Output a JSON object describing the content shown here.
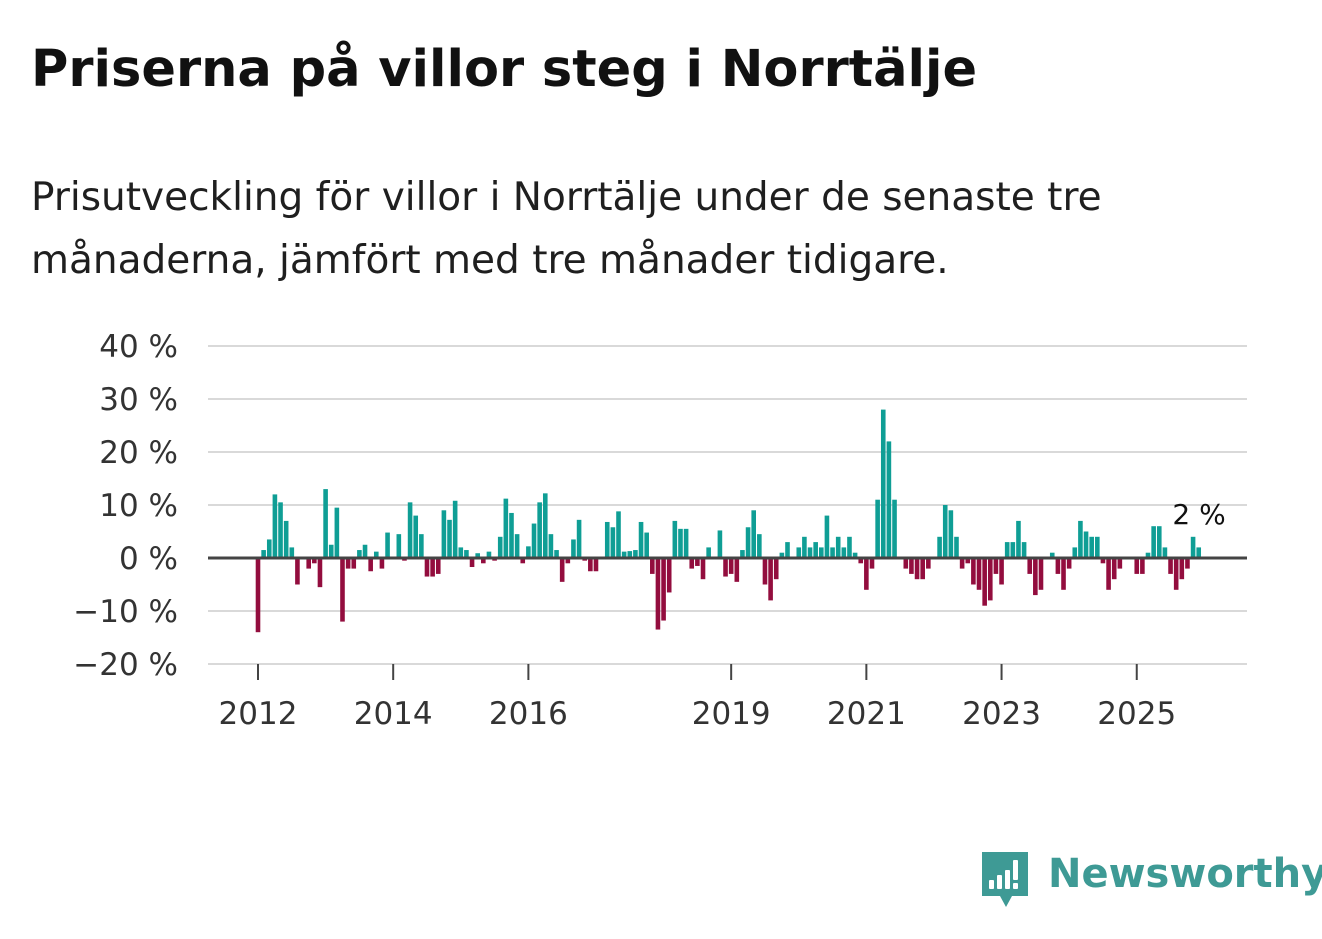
{
  "title": "Priserna på villor steg i Norrtälje",
  "subtitle": "Prisutveckling för villor i Norrtälje under de senaste tre månaderna, jämfört med tre månader tidigare.",
  "brand": "Newsworthy",
  "colors": {
    "positive": "#0f9e95",
    "negative": "#930d3e",
    "grid": "#d9d9d9",
    "zero": "#444444",
    "brand": "#3e9a95"
  },
  "chart_data": {
    "type": "bar",
    "title": "Priserna på villor steg i Norrtälje",
    "ylim": [
      -20,
      40
    ],
    "yticks": [
      40,
      30,
      20,
      10,
      0,
      -10,
      -20
    ],
    "ytick_labels": [
      "40 %",
      "30 %",
      "20 %",
      "10 %",
      "0 %",
      "−10 %",
      "−20 %"
    ],
    "xtick_labels": [
      "2012",
      "2014",
      "2016",
      "2019",
      "2021",
      "2023",
      "2025"
    ],
    "xtick_index": [
      0,
      24,
      48,
      84,
      108,
      132,
      156
    ],
    "last_label": "2 %",
    "start": "2012-01",
    "values": [
      -14,
      1.5,
      3.5,
      12,
      10.5,
      7,
      2,
      -5,
      0,
      -2,
      -1,
      -5.5,
      13,
      2.5,
      9.5,
      -12,
      -2,
      -2,
      1.5,
      2.5,
      -2.5,
      1.2,
      -2,
      4.8,
      0,
      4.5,
      -0.5,
      10.5,
      8,
      4.5,
      -3.5,
      -3.5,
      -3,
      9,
      7.2,
      10.8,
      2,
      1.5,
      -1.7,
      0.9,
      -1,
      1.2,
      -0.5,
      4,
      11.2,
      8.5,
      4.5,
      -1,
      2.2,
      6.5,
      10.5,
      12.2,
      4.5,
      1.5,
      -4.5,
      -1,
      3.5,
      7.2,
      -0.5,
      -2.5,
      -2.5,
      0,
      6.8,
      5.8,
      8.8,
      1.2,
      1.3,
      1.5,
      6.8,
      4.8,
      -3,
      -13.5,
      -11.8,
      -6.5,
      7,
      5.5,
      5.5,
      -2,
      -1.5,
      -4,
      2,
      0,
      5.2,
      -3.5,
      -3,
      -4.5,
      1.5,
      5.8,
      9,
      4.5,
      -5,
      -8,
      -4,
      1,
      3,
      0,
      2,
      4,
      2,
      3,
      2,
      8,
      2,
      4,
      2,
      4,
      1,
      -1,
      -6,
      -2,
      11,
      28,
      22,
      11,
      0,
      -2,
      -3,
      -4,
      -4,
      -2,
      0,
      4,
      10,
      9,
      4,
      -2,
      -1,
      -5,
      -6,
      -9,
      -8,
      -3,
      -5,
      3,
      3,
      7,
      3,
      -3,
      -7,
      -6,
      0,
      1,
      -3,
      -6,
      -2,
      2,
      7,
      5,
      4,
      4,
      -1,
      -6,
      -4,
      -2,
      0,
      0,
      -3,
      -3,
      1,
      6,
      6,
      2,
      -3,
      -6,
      -4,
      -2,
      4,
      2
    ]
  }
}
